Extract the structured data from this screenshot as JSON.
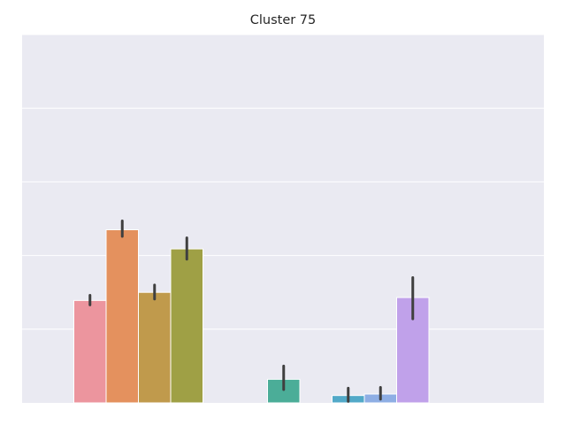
{
  "chart_data": {
    "type": "bar",
    "title": "Cluster 75",
    "xlabel": "",
    "ylabel": "",
    "grid": true,
    "legend": "none",
    "ylim": [
      0,
      5
    ],
    "x_slots": 16,
    "background": "#EAEAF2",
    "gridline_color": "#FFFFFF",
    "errorbar_color": "#3F3F3F",
    "bars": [
      {
        "slot": 1,
        "value": 1.39,
        "err_low": 1.33,
        "err_high": 1.46,
        "color": "#EC959E"
      },
      {
        "slot": 2,
        "value": 2.35,
        "err_low": 2.26,
        "err_high": 2.47,
        "color": "#E4915E"
      },
      {
        "slot": 3,
        "value": 1.5,
        "err_low": 1.41,
        "err_high": 1.6,
        "color": "#C09A4C"
      },
      {
        "slot": 4,
        "value": 2.09,
        "err_low": 1.95,
        "err_high": 2.24,
        "color": "#9FA045"
      },
      {
        "slot": 7,
        "value": 0.32,
        "err_low": 0.18,
        "err_high": 0.5,
        "color": "#4BAD98"
      },
      {
        "slot": 9,
        "value": 0.1,
        "err_low": 0.02,
        "err_high": 0.2,
        "color": "#52A9C8"
      },
      {
        "slot": 10,
        "value": 0.12,
        "err_low": 0.05,
        "err_high": 0.21,
        "color": "#8EAEE4"
      },
      {
        "slot": 11,
        "value": 1.43,
        "err_low": 1.14,
        "err_high": 1.7,
        "color": "#C0A1EA"
      }
    ]
  }
}
